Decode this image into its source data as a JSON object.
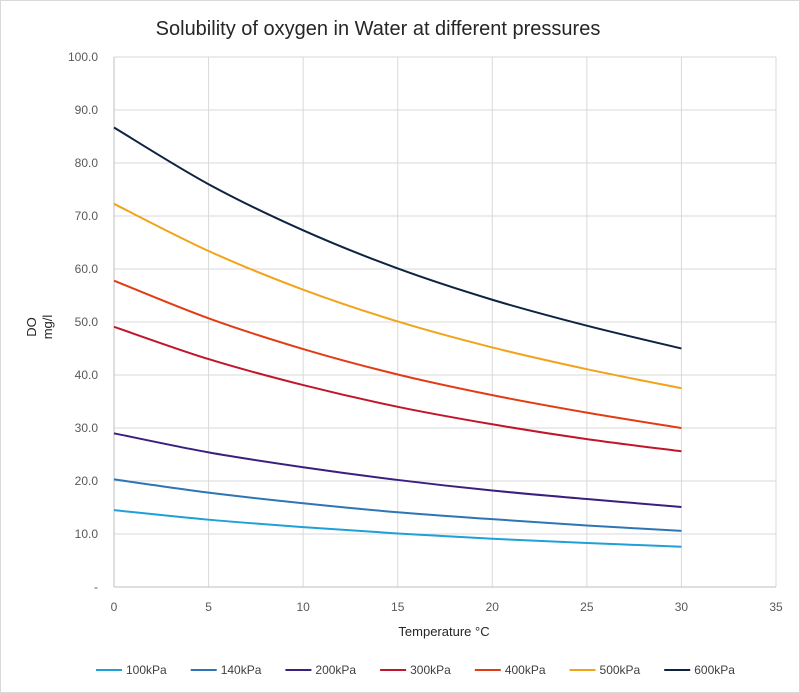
{
  "chart_data": {
    "type": "line",
    "title": "Solubility of oxygen in Water at different pressures",
    "xlabel": "Temperature °C",
    "ylabel_lines": [
      "DO",
      "mg/l"
    ],
    "xlim": [
      0,
      35
    ],
    "ylim": [
      0,
      100
    ],
    "x_ticks": [
      0,
      5,
      10,
      15,
      20,
      25,
      30,
      35
    ],
    "y_ticks": [
      0,
      10,
      20,
      30,
      40,
      50,
      60,
      70,
      80,
      90,
      100
    ],
    "y_tick_labels": [
      "-",
      "10.0",
      "20.0",
      "30.0",
      "40.0",
      "50.0",
      "60.0",
      "70.0",
      "80.0",
      "90.0",
      "100.0"
    ],
    "grid": true,
    "legend_position": "bottom",
    "x": [
      0,
      5,
      10,
      15,
      20,
      25,
      30
    ],
    "series": [
      {
        "name": "100kPa",
        "color": "#1FA0D8",
        "values": [
          14.5,
          12.7,
          11.3,
          10.1,
          9.1,
          8.3,
          7.6
        ]
      },
      {
        "name": "140kPa",
        "color": "#2E75B6",
        "values": [
          20.3,
          17.8,
          15.8,
          14.1,
          12.8,
          11.6,
          10.6
        ]
      },
      {
        "name": "200kPa",
        "color": "#3B1F7F",
        "values": [
          29.0,
          25.4,
          22.6,
          20.2,
          18.2,
          16.6,
          15.1
        ]
      },
      {
        "name": "300kPa",
        "color": "#C0162C",
        "values": [
          49.1,
          43.0,
          38.1,
          34.0,
          30.7,
          27.9,
          25.6
        ]
      },
      {
        "name": "400kPa",
        "color": "#E23C14",
        "values": [
          57.8,
          50.7,
          44.9,
          40.1,
          36.2,
          32.9,
          30.0
        ]
      },
      {
        "name": "500kPa",
        "color": "#F2A31C",
        "values": [
          72.3,
          63.4,
          56.1,
          50.1,
          45.2,
          41.1,
          37.5
        ]
      },
      {
        "name": "600kPa",
        "color": "#0E2341",
        "values": [
          86.7,
          76.0,
          67.3,
          60.1,
          54.2,
          49.3,
          45.0
        ]
      }
    ]
  }
}
